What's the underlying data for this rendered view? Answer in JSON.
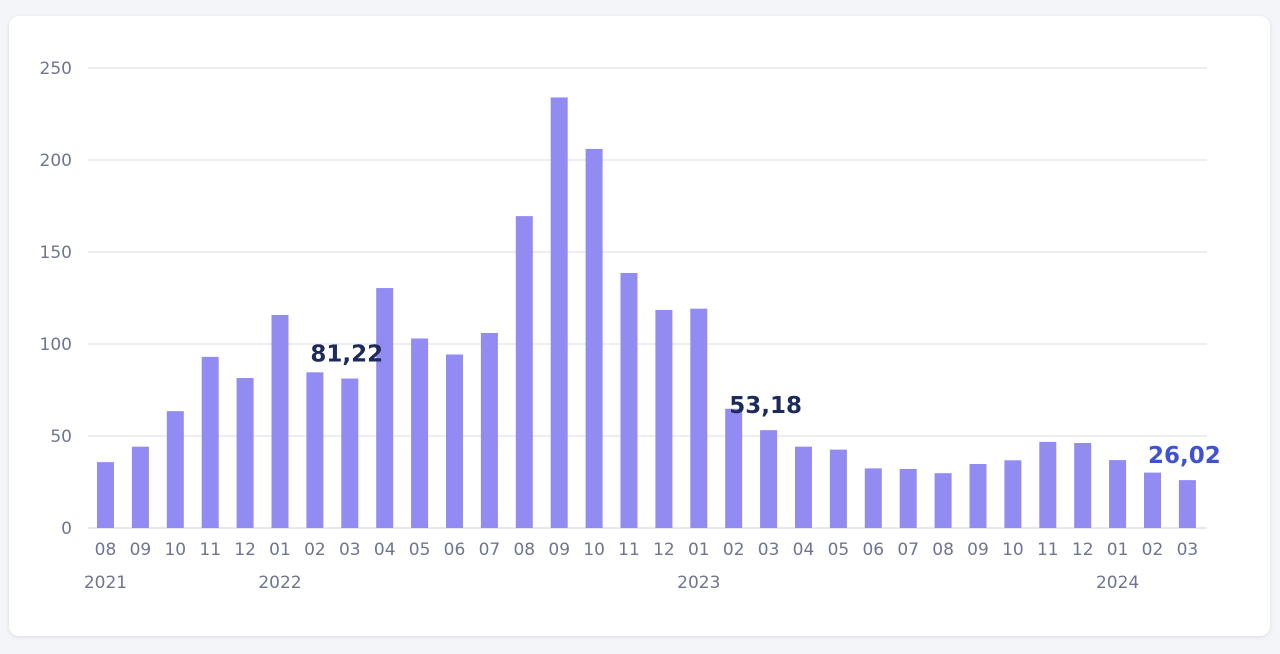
{
  "chart_data": {
    "type": "bar",
    "categories": [
      "08",
      "09",
      "10",
      "11",
      "12",
      "01",
      "02",
      "03",
      "04",
      "05",
      "06",
      "07",
      "08",
      "09",
      "10",
      "11",
      "12",
      "01",
      "02",
      "03",
      "04",
      "05",
      "06",
      "07",
      "08",
      "09",
      "10",
      "11",
      "12",
      "01",
      "02",
      "03"
    ],
    "year_labels": [
      {
        "label": "2021",
        "index": 0
      },
      {
        "label": "2022",
        "index": 5
      },
      {
        "label": "2023",
        "index": 17
      },
      {
        "label": "2024",
        "index": 29
      }
    ],
    "values": [
      35.8,
      44.2,
      63.5,
      93.0,
      81.5,
      115.8,
      84.6,
      81.22,
      130.4,
      103.0,
      94.3,
      106.0,
      169.5,
      234.0,
      206.0,
      138.6,
      118.5,
      119.2,
      64.8,
      53.18,
      44.2,
      42.6,
      32.4,
      32.1,
      29.8,
      34.8,
      36.8,
      46.8,
      46.2,
      36.9,
      30.1,
      26.02
    ],
    "ylim": [
      0,
      250
    ],
    "yticks": [
      0,
      50,
      100,
      150,
      200,
      250
    ],
    "grid": true,
    "bar_color": "#928bf2",
    "annotations": [
      {
        "text": "81,22",
        "index": 7,
        "color": "#1d2b5c"
      },
      {
        "text": "53,18",
        "index": 19,
        "color": "#1d2b5c"
      },
      {
        "text": "26,02",
        "index": 31,
        "color": "#3f51d4"
      }
    ]
  }
}
